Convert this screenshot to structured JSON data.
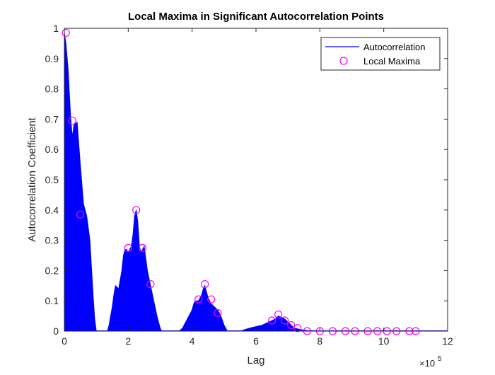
{
  "chart_data": {
    "type": "line",
    "title": "Local Maxima in Significant Autocorrelation Points",
    "xlabel": "Lag",
    "ylabel": "Autocorrelation Coefficient",
    "x_exponent_label": "×10",
    "x_exponent_power": "5",
    "xlim": [
      0,
      12
    ],
    "ylim": [
      0,
      1
    ],
    "x_ticks": [
      "0",
      "2",
      "4",
      "6",
      "8",
      "10",
      "12"
    ],
    "y_ticks": [
      "0",
      "0.1",
      "0.2",
      "0.3",
      "0.4",
      "0.5",
      "0.6",
      "0.7",
      "0.8",
      "0.9",
      "1"
    ],
    "legend_position": "top-right",
    "series": [
      {
        "name": "Autocorrelation",
        "color": "#0000ff",
        "style": "dense-filled-line",
        "envelope_x": [
          0,
          0.05,
          0.12,
          0.2,
          0.25,
          0.3,
          0.4,
          0.5,
          0.6,
          0.7,
          0.8,
          0.9,
          0.95,
          1.0,
          1.05,
          1.15,
          1.25,
          1.35,
          1.4,
          1.5,
          1.55,
          1.6,
          1.7,
          1.8,
          1.85,
          1.9,
          1.95,
          2.0,
          2.1,
          2.15,
          2.2,
          2.25,
          2.3,
          2.35,
          2.4,
          2.45,
          2.5,
          2.55,
          2.6,
          2.7,
          2.8,
          2.9,
          3.0,
          3.05,
          3.1,
          3.3,
          3.5,
          3.6,
          3.7,
          3.8,
          3.9,
          4.0,
          4.05,
          4.1,
          4.2,
          4.25,
          4.3,
          4.35,
          4.4,
          4.45,
          4.5,
          4.55,
          4.6,
          4.7,
          4.8,
          4.9,
          5.0,
          5.1,
          5.2,
          5.3,
          5.5,
          5.8,
          6.0,
          6.2,
          6.4,
          6.5,
          6.6,
          6.7,
          6.8,
          6.9,
          7.0,
          7.1,
          7.2,
          7.4,
          7.6,
          8.0,
          10.0,
          12.0
        ],
        "envelope_y": [
          0.985,
          0.95,
          0.86,
          0.7,
          0.64,
          0.68,
          0.69,
          0.55,
          0.42,
          0.38,
          0.3,
          0.12,
          0.04,
          0.0,
          0.0,
          0.0,
          0.0,
          0.0,
          0.02,
          0.08,
          0.12,
          0.15,
          0.14,
          0.2,
          0.25,
          0.27,
          0.27,
          0.26,
          0.28,
          0.32,
          0.38,
          0.4,
          0.36,
          0.28,
          0.26,
          0.27,
          0.28,
          0.24,
          0.2,
          0.15,
          0.1,
          0.05,
          0.01,
          0.0,
          0.0,
          0.0,
          0.0,
          0.0,
          0.01,
          0.03,
          0.05,
          0.07,
          0.09,
          0.1,
          0.1,
          0.11,
          0.12,
          0.14,
          0.15,
          0.13,
          0.11,
          0.1,
          0.09,
          0.08,
          0.07,
          0.05,
          0.02,
          0.0,
          0.0,
          0.0,
          0.0,
          0.01,
          0.015,
          0.02,
          0.03,
          0.035,
          0.04,
          0.05,
          0.045,
          0.04,
          0.03,
          0.02,
          0.01,
          0.005,
          0.002,
          0.001,
          0.0,
          0.0
        ]
      },
      {
        "name": "Local Maxima",
        "color": "#ff00ff",
        "marker": "circle",
        "x": [
          0.05,
          0.25,
          0.5,
          2.0,
          2.25,
          2.45,
          2.7,
          4.2,
          4.4,
          4.6,
          4.8,
          6.5,
          6.7,
          6.9,
          7.1,
          7.3,
          7.6,
          8.0,
          8.4,
          8.8,
          9.1,
          9.5,
          9.8,
          10.1,
          10.4,
          10.8,
          11.0
        ],
        "y": [
          0.985,
          0.695,
          0.385,
          0.275,
          0.4,
          0.275,
          0.155,
          0.105,
          0.155,
          0.105,
          0.06,
          0.035,
          0.055,
          0.035,
          0.02,
          0.01,
          0.0,
          0.0,
          0.0,
          0.0,
          0.0,
          0.0,
          0.0,
          0.0,
          0.0,
          0.0,
          0.0
        ]
      }
    ]
  }
}
